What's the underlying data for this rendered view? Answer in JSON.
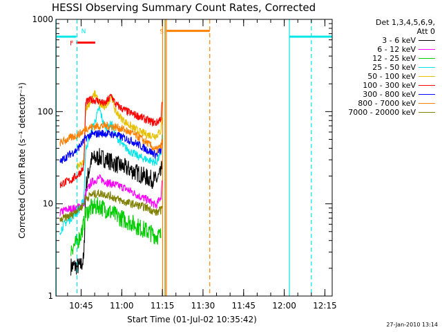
{
  "chart_data": {
    "type": "line",
    "title": "HESSI Observing Summary Count Rates, Corrected",
    "xlabel": "Start Time (01-Jul-02 10:35:42)",
    "ylabel": "Corrected Count Rate (s⁻¹ detector⁻¹)",
    "yscale": "log",
    "ylim": [
      1,
      1000
    ],
    "xlim_min_from_start": [
      0,
      102
    ],
    "x_ticks": [
      {
        "label": "10:45",
        "t": 9.3
      },
      {
        "label": "11:00",
        "t": 24.3
      },
      {
        "label": "11:15",
        "t": 39.3
      },
      {
        "label": "11:30",
        "t": 54.3
      },
      {
        "label": "11:45",
        "t": 69.3
      },
      {
        "label": "12:00",
        "t": 84.3
      },
      {
        "label": "12:15",
        "t": 99.3
      }
    ],
    "y_ticks": [
      {
        "label": "1",
        "v": 1
      },
      {
        "label": "10",
        "v": 10
      },
      {
        "label": "100",
        "v": 100
      },
      {
        "label": "1000",
        "v": 1000
      }
    ],
    "legend_header": [
      "Det 1,3,4,5,6,9,",
      "Att 0"
    ],
    "series": [
      {
        "name": "3 - 6 keV",
        "color": "#000000",
        "points": [
          [
            5.5,
            2.1
          ],
          [
            9,
            2.1
          ],
          [
            10.3,
            2.5
          ],
          [
            11,
            15
          ],
          [
            13,
            30
          ],
          [
            16,
            32
          ],
          [
            19,
            30
          ],
          [
            22,
            27
          ],
          [
            25,
            25
          ],
          [
            28,
            23
          ],
          [
            31,
            21
          ],
          [
            34,
            19
          ],
          [
            37,
            18
          ],
          [
            38.8,
            21
          ],
          [
            39.2,
            27
          ]
        ]
      },
      {
        "name": "6 - 12 keV",
        "color": "#ff00ff",
        "points": [
          [
            1.5,
            8
          ],
          [
            3,
            8.5
          ],
          [
            5.5,
            8.8
          ],
          [
            7.5,
            9
          ],
          [
            9,
            9.5
          ],
          [
            10.3,
            10
          ],
          [
            11,
            13
          ],
          [
            13,
            17
          ],
          [
            16,
            19
          ],
          [
            19,
            17
          ],
          [
            22,
            16
          ],
          [
            25,
            15
          ],
          [
            28,
            13.5
          ],
          [
            31,
            12
          ],
          [
            34,
            11
          ],
          [
            37,
            9.5
          ],
          [
            38.8,
            12
          ],
          [
            39.2,
            17
          ]
        ]
      },
      {
        "name": "12 - 25 keV",
        "color": "#00cc00",
        "points": [
          [
            5.5,
            3.3
          ],
          [
            7.5,
            3.7
          ],
          [
            9,
            4.5
          ],
          [
            10.3,
            6
          ],
          [
            11,
            7.8
          ],
          [
            13,
            9
          ],
          [
            16,
            9.5
          ],
          [
            19,
            8.5
          ],
          [
            22,
            7.5
          ],
          [
            25,
            6.8
          ],
          [
            28,
            6.2
          ],
          [
            31,
            5.5
          ],
          [
            34,
            5
          ],
          [
            37,
            4.5
          ],
          [
            38.8,
            4.5
          ]
        ]
      },
      {
        "name": "25 - 50 keV",
        "color": "#00e5e5",
        "points": [
          [
            1.5,
            5
          ],
          [
            3,
            6
          ],
          [
            5.5,
            7
          ],
          [
            7.5,
            8
          ],
          [
            9,
            9
          ],
          [
            10.3,
            11
          ],
          [
            11,
            40
          ],
          [
            13,
            60
          ],
          [
            14.5,
            80
          ],
          [
            16,
            110
          ],
          [
            17.5,
            75
          ],
          [
            19,
            65
          ],
          [
            20.5,
            75
          ],
          [
            22,
            55
          ],
          [
            25,
            42
          ],
          [
            28,
            36
          ],
          [
            31,
            32
          ],
          [
            34,
            30
          ],
          [
            37,
            28
          ],
          [
            38.8,
            35
          ],
          [
            39.2,
            55
          ]
        ]
      },
      {
        "name": "50 - 100 keV",
        "color": "#e6c000",
        "points": [
          [
            7.5,
            25
          ],
          [
            9,
            26
          ],
          [
            10.3,
            28
          ],
          [
            11,
            110
          ],
          [
            13,
            130
          ],
          [
            14.5,
            160
          ],
          [
            16,
            120
          ],
          [
            18,
            110
          ],
          [
            20.5,
            150
          ],
          [
            22,
            100
          ],
          [
            25,
            80
          ],
          [
            28,
            68
          ],
          [
            31,
            60
          ],
          [
            34,
            56
          ],
          [
            37,
            55
          ],
          [
            38.8,
            62
          ],
          [
            39.2,
            90
          ]
        ]
      },
      {
        "name": "100 - 300 keV",
        "color": "#ff0000",
        "points": [
          [
            1.5,
            16
          ],
          [
            3,
            17
          ],
          [
            5.5,
            18
          ],
          [
            7.5,
            20
          ],
          [
            9,
            22
          ],
          [
            10.3,
            25
          ],
          [
            11,
            125
          ],
          [
            13,
            135
          ],
          [
            16,
            130
          ],
          [
            18,
            120
          ],
          [
            20.5,
            150
          ],
          [
            22,
            120
          ],
          [
            25,
            105
          ],
          [
            28,
            95
          ],
          [
            31,
            88
          ],
          [
            34,
            80
          ],
          [
            37,
            75
          ],
          [
            38.8,
            85
          ],
          [
            39.2,
            125
          ]
        ]
      },
      {
        "name": "300 - 800 keV",
        "color": "#0000ff",
        "points": [
          [
            1.5,
            28
          ],
          [
            3,
            31
          ],
          [
            5.5,
            35
          ],
          [
            7.5,
            38
          ],
          [
            9,
            43
          ],
          [
            10.3,
            48
          ],
          [
            11,
            52
          ],
          [
            13,
            56
          ],
          [
            16,
            58
          ],
          [
            19,
            58
          ],
          [
            22,
            56
          ],
          [
            25,
            52
          ],
          [
            28,
            48
          ],
          [
            31,
            43
          ],
          [
            34,
            38
          ],
          [
            37,
            34
          ],
          [
            38.8,
            38
          ],
          [
            39.2,
            46
          ]
        ]
      },
      {
        "name": "800 - 7000 keV",
        "color": "#ff8000",
        "points": [
          [
            1.5,
            46
          ],
          [
            3,
            48
          ],
          [
            5.5,
            52
          ],
          [
            7.5,
            55
          ],
          [
            9,
            58
          ],
          [
            10.3,
            62
          ],
          [
            11,
            66
          ],
          [
            13,
            68
          ],
          [
            16,
            70
          ],
          [
            19,
            70
          ],
          [
            22,
            68
          ],
          [
            25,
            64
          ],
          [
            28,
            58
          ],
          [
            31,
            52
          ],
          [
            34,
            45
          ],
          [
            37,
            38
          ],
          [
            38.8,
            42
          ],
          [
            39.2,
            48
          ]
        ]
      },
      {
        "name": "7000 - 20000 keV",
        "color": "#808000",
        "points": [
          [
            1.5,
            6.5
          ],
          [
            3,
            7
          ],
          [
            5.5,
            7.5
          ],
          [
            7.5,
            8.5
          ],
          [
            9,
            9
          ],
          [
            10.3,
            10
          ],
          [
            11,
            11.5
          ],
          [
            13,
            12.5
          ],
          [
            16,
            13
          ],
          [
            19,
            12.5
          ],
          [
            22,
            11.5
          ],
          [
            25,
            10.5
          ],
          [
            28,
            10
          ],
          [
            31,
            9.5
          ],
          [
            34,
            9
          ],
          [
            37,
            8
          ],
          [
            38.8,
            8.5
          ],
          [
            39.2,
            10.5
          ]
        ]
      }
    ],
    "attenuator_bars": [
      {
        "label": "",
        "t0": 0,
        "t1": 7.5,
        "value": 650,
        "color": "#00e5e5"
      },
      {
        "label": "F",
        "t0": 7.5,
        "t1": 14.5,
        "value": 560,
        "color": "#ff0000"
      },
      {
        "label": "S",
        "t0": 40.8,
        "t1": 56.8,
        "value": 750,
        "color": "#ff8000"
      },
      {
        "label": "",
        "t0": 86.2,
        "t1": 102,
        "value": 650,
        "color": "#00e5e5"
      }
    ],
    "vertical_markers": [
      {
        "t": 0.1,
        "color": "#00e5e5",
        "style": "solid"
      },
      {
        "t": 7.8,
        "color": "#00e5e5",
        "style": "dashed",
        "label": "N"
      },
      {
        "t": 39.4,
        "color": "#ff8000",
        "style": "solid"
      },
      {
        "t": 40.3,
        "color": "#808000",
        "style": "solid"
      },
      {
        "t": 40.8,
        "color": "#ff8000",
        "style": "solid"
      },
      {
        "t": 56.8,
        "color": "#ff8000",
        "style": "dashed"
      },
      {
        "t": 86.2,
        "color": "#00e5e5",
        "style": "solid"
      },
      {
        "t": 94.3,
        "color": "#00e5e5",
        "style": "dashed"
      }
    ]
  },
  "footer_timestamp": "27-Jan-2010 13:14"
}
